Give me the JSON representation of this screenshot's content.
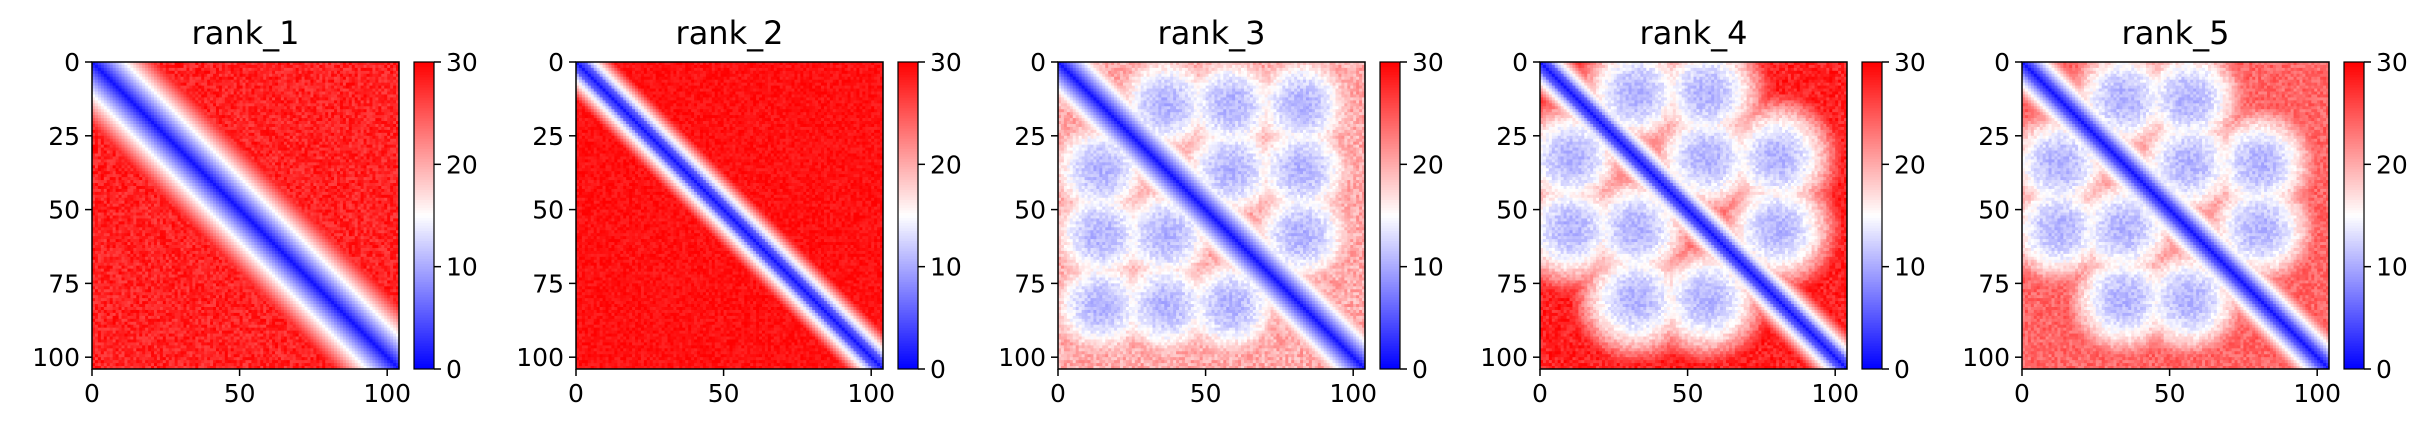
{
  "chart_data": [
    {
      "type": "heatmap",
      "title": "rank_1",
      "n": 104,
      "xlim": [
        0,
        104
      ],
      "ylim": [
        104,
        0
      ],
      "xticks": [
        0,
        50,
        100
      ],
      "yticks": [
        0,
        25,
        50,
        75,
        100
      ],
      "colorbar": {
        "min": 0,
        "max": 30,
        "ticks": [
          0,
          10,
          20,
          30
        ],
        "colormap": "bwr"
      },
      "pattern": {
        "diag_width": 3.2,
        "band_strength": 0.55,
        "band_width": 18,
        "blocks": [],
        "noise": 0.25,
        "base": 28
      }
    },
    {
      "type": "heatmap",
      "title": "rank_2",
      "n": 104,
      "xlim": [
        0,
        104
      ],
      "ylim": [
        104,
        0
      ],
      "xticks": [
        0,
        50,
        100
      ],
      "yticks": [
        0,
        25,
        50,
        75,
        100
      ],
      "colorbar": {
        "min": 0,
        "max": 30,
        "ticks": [
          0,
          10,
          20,
          30
        ],
        "colormap": "bwr"
      },
      "pattern": {
        "diag_width": 3.0,
        "band_strength": 0.25,
        "band_width": 10,
        "blocks": [],
        "noise": 0.15,
        "base": 29
      }
    },
    {
      "type": "heatmap",
      "title": "rank_3",
      "n": 104,
      "xlim": [
        0,
        104
      ],
      "ylim": [
        104,
        0
      ],
      "xticks": [
        0,
        50,
        100
      ],
      "yticks": [
        0,
        25,
        50,
        75,
        100
      ],
      "colorbar": {
        "min": 0,
        "max": 30,
        "ticks": [
          0,
          10,
          20,
          30
        ],
        "colormap": "bwr"
      },
      "pattern": {
        "diag_width": 3.0,
        "band_strength": 0.35,
        "band_width": 10,
        "blocks": [
          [
            14,
            36
          ],
          [
            36,
            58
          ],
          [
            58,
            82
          ],
          [
            14,
            58
          ],
          [
            36,
            82
          ],
          [
            14,
            82
          ]
        ],
        "noise": 0.3,
        "base": 20
      }
    },
    {
      "type": "heatmap",
      "title": "rank_4",
      "n": 104,
      "xlim": [
        0,
        104
      ],
      "ylim": [
        104,
        0
      ],
      "xticks": [
        0,
        50,
        100
      ],
      "yticks": [
        0,
        25,
        50,
        75,
        100
      ],
      "colorbar": {
        "min": 0,
        "max": 30,
        "ticks": [
          0,
          10,
          20,
          30
        ],
        "colormap": "bwr"
      },
      "pattern": {
        "diag_width": 3.0,
        "band_strength": 0.3,
        "band_width": 10,
        "blocks": [
          [
            10,
            32
          ],
          [
            32,
            56
          ],
          [
            56,
            80
          ],
          [
            10,
            56
          ],
          [
            32,
            80
          ]
        ],
        "noise": 0.25,
        "base": 28
      }
    },
    {
      "type": "heatmap",
      "title": "rank_5",
      "n": 104,
      "xlim": [
        0,
        104
      ],
      "ylim": [
        104,
        0
      ],
      "xticks": [
        0,
        50,
        100
      ],
      "yticks": [
        0,
        25,
        50,
        75,
        100
      ],
      "colorbar": {
        "min": 0,
        "max": 30,
        "ticks": [
          0,
          10,
          20,
          30
        ],
        "colormap": "bwr"
      },
      "pattern": {
        "diag_width": 3.0,
        "band_strength": 0.3,
        "band_width": 10,
        "blocks": [
          [
            12,
            34
          ],
          [
            34,
            56
          ],
          [
            56,
            80
          ],
          [
            12,
            56
          ],
          [
            34,
            80
          ]
        ],
        "noise": 0.25,
        "base": 24
      }
    }
  ]
}
